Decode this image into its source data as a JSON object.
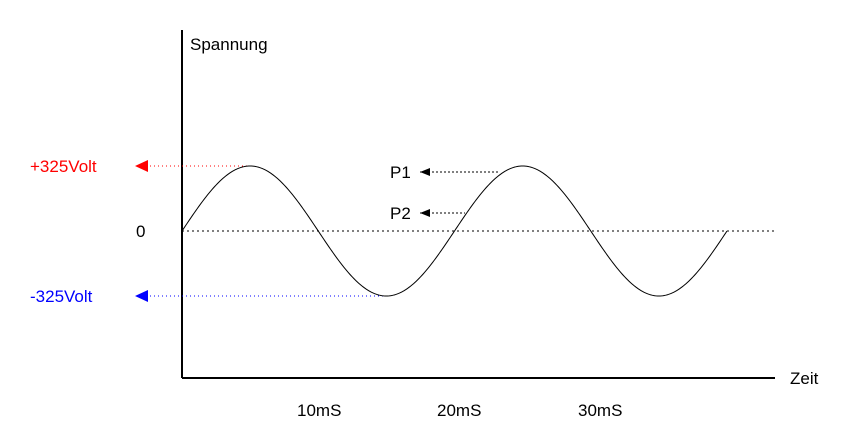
{
  "chart_data": {
    "type": "line",
    "title": "",
    "ylabel": "Spannung",
    "xlabel": "Zeit",
    "x_ticks": [
      "10mS",
      "20mS",
      "30mS"
    ],
    "y_markers": [
      {
        "label": "+325Volt",
        "value": 325,
        "color": "#ff0000"
      },
      {
        "label": "0",
        "value": 0,
        "color": "#000000"
      },
      {
        "label": "-325Volt",
        "value": -325,
        "color": "#0000ff"
      }
    ],
    "series": [
      {
        "type": "sine",
        "amplitude": 325,
        "period_ms": 20,
        "x_start_ms": 0,
        "x_end_ms": 40
      }
    ],
    "annotations": [
      {
        "label": "P1",
        "value": 325
      },
      {
        "label": "P2",
        "value": 200
      }
    ]
  }
}
